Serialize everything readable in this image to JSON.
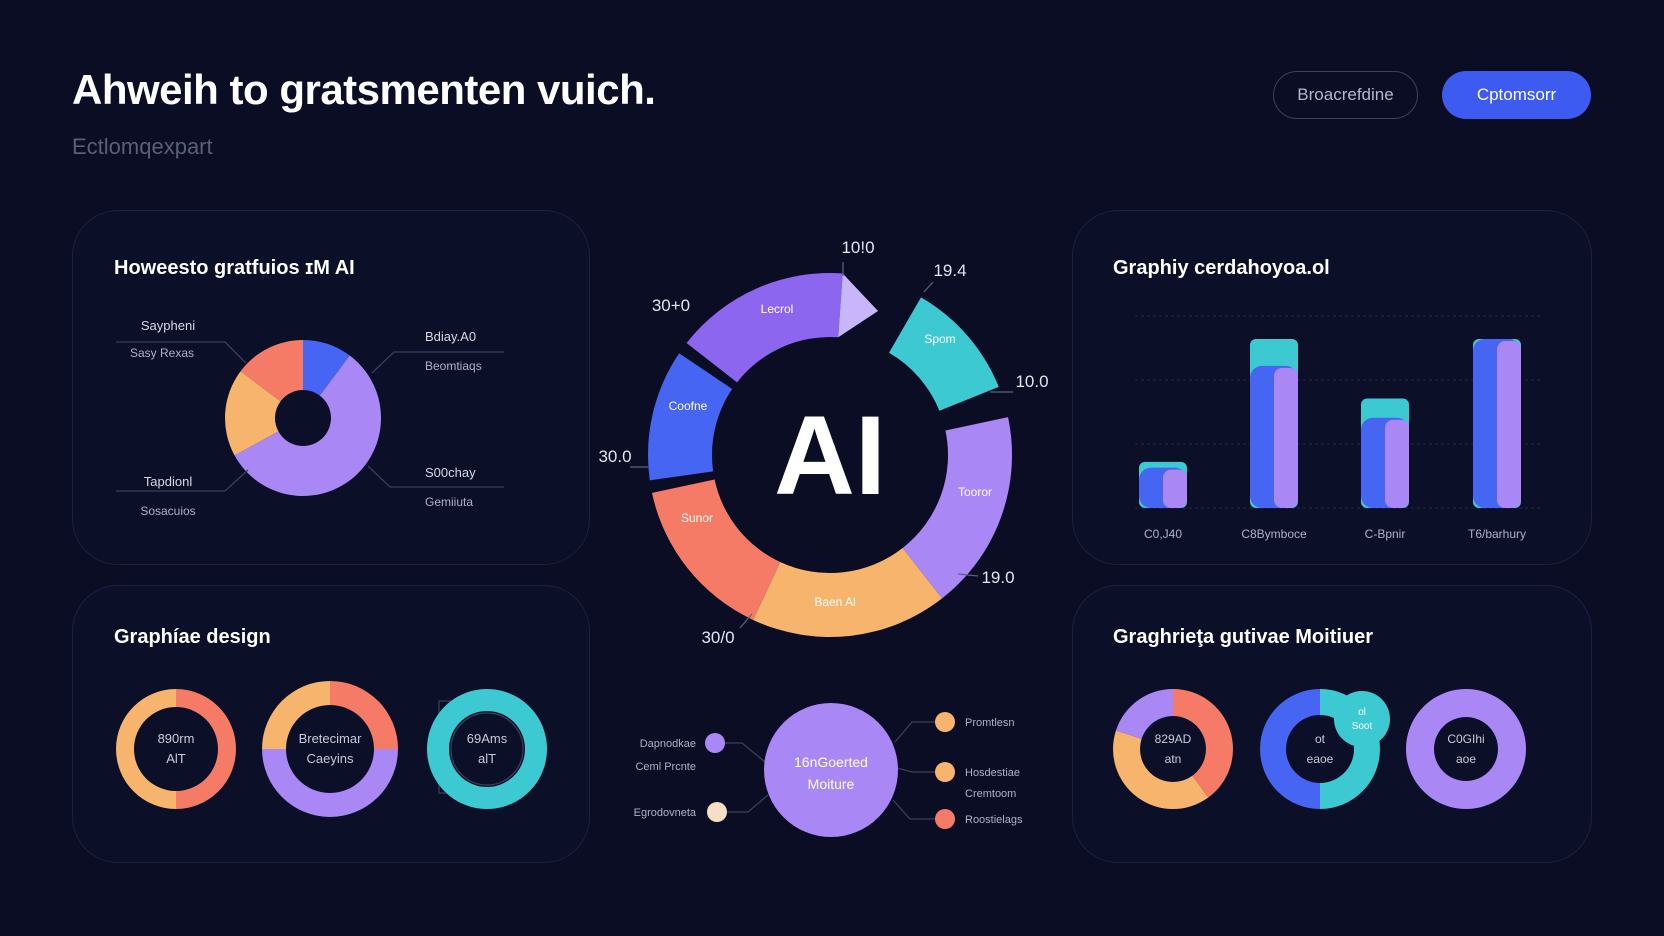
{
  "header": {
    "title": "Ahweih to gratsmenten vuich.",
    "subtitle": "Ectlomqexpart"
  },
  "toolbar": {
    "secondary_label": "Broacrefdine",
    "primary_label": "Cptomsorr"
  },
  "colors": {
    "background": "#0b0d24",
    "card": "#0c0f28",
    "blue": "#4565f2",
    "purple": "#a987f5",
    "violet": "#8d66f0",
    "teal": "#3cc9d2",
    "coral": "#f57b66",
    "orange": "#f6b46c",
    "cream": "#f6dfc4",
    "primary_button": "#3d5bf0"
  },
  "cards": {
    "top_left": "Howeesto gratfuios ɪM AI",
    "top_right": "Graphiy cerdahoyoa.ol",
    "bottom_left": "Graphíae design",
    "bottom_right": "Graghrieţa gutivae Moitiuer"
  },
  "chart_data": [
    {
      "type": "pie",
      "title": "Howeesto gratfuios ɪM AI",
      "slices": [
        {
          "label": "Saypheni",
          "sublabel": "Sasy Rexas",
          "value": 9,
          "color": "#4565f2"
        },
        {
          "label": "Bdiay.A0",
          "sublabel": "Beomtiaqs",
          "value": 50,
          "color": "#a987f5"
        },
        {
          "label": "S00chay",
          "sublabel": "Gemiiuta",
          "value": 16,
          "color": "#f6b46c"
        },
        {
          "label": "Tapdionl",
          "sublabel": "Sosacuios",
          "value": 13,
          "color": "#f57b66"
        }
      ]
    },
    {
      "type": "pie",
      "title": "AI",
      "segments": [
        {
          "label": "Lecrol",
          "color": "#8d66f0"
        },
        {
          "label": "",
          "color": "#c9b6fa"
        },
        {
          "label": "Spom",
          "color": "#3cc9d2"
        },
        {
          "label": "Tooror",
          "color": "#a987f5"
        },
        {
          "label": "Baen Al",
          "color": "#f6b46c"
        },
        {
          "label": "Sunor",
          "color": "#f57b66"
        },
        {
          "label": "Coofne",
          "color": "#4565f2"
        }
      ],
      "annotations": [
        "10!0",
        "19.4",
        "10.0",
        "19.0",
        "30/0",
        "30.0",
        "30+0"
      ]
    },
    {
      "type": "bar",
      "title": "Graphiy cerdahoyoa.ol",
      "categories": [
        "C0,J40",
        "C8Bymboce",
        "C-Bpnir",
        "T6/barhury"
      ],
      "series": [
        {
          "values": [
            21,
            74,
            47,
            88
          ],
          "color": "#4565f2"
        },
        {
          "values": [
            24,
            88,
            57,
            88
          ],
          "color": "#3cc9d2"
        }
      ],
      "ylim": [
        0,
        100
      ],
      "grid": true
    },
    {
      "type": "pie",
      "title": "Graphíae design",
      "donuts": [
        {
          "label_lines": [
            "890rm",
            "AlT"
          ],
          "slices": [
            {
              "value": 50,
              "color": "#f57b66"
            },
            {
              "value": 50,
              "color": "#f6b46c"
            }
          ]
        },
        {
          "label_lines": [
            "Bretecimar",
            "Caeyins"
          ],
          "slices": [
            {
              "value": 25,
              "color": "#f57b66"
            },
            {
              "value": 50,
              "color": "#a987f5"
            },
            {
              "value": 25,
              "color": "#f6b46c"
            }
          ]
        },
        {
          "label_lines": [
            "69Ams",
            "alT"
          ],
          "slices": [
            {
              "value": 50,
              "color": "#3cc9d2"
            }
          ]
        }
      ]
    },
    {
      "type": "pie",
      "title": "16nGoerted Moiture",
      "center_lines": [
        "16nGoerted",
        "Moiture"
      ],
      "left_nodes": [
        {
          "label": "Dapnodkae",
          "sublabel": "Ceml Prcnte",
          "color": "#a987f5"
        },
        {
          "label": "Egrodovneta",
          "sublabel": "",
          "color": "#f6dfc4"
        }
      ],
      "right_nodes": [
        {
          "label": "Promtlesn",
          "sublabel": "",
          "color": "#f6b46c"
        },
        {
          "label": "Hosdestiae",
          "sublabel": "Cremtoom",
          "color": "#f6b46c"
        },
        {
          "label": "Roostielags",
          "sublabel": "",
          "color": "#f57b66"
        }
      ]
    },
    {
      "type": "pie",
      "title": "Graghrieţa gutivae Moitiuer",
      "donuts": [
        {
          "label_lines": [
            "829AD",
            "atn"
          ],
          "slices": [
            {
              "value": 40,
              "color": "#f57b66"
            },
            {
              "value": 40,
              "color": "#f6b46c"
            },
            {
              "value": 20,
              "color": "#a987f5"
            }
          ]
        },
        {
          "label_lines": [
            "ot",
            "eaoe"
          ],
          "badge": [
            "ol",
            "Soot"
          ],
          "slices": [
            {
              "value": 50,
              "color": "#3cc9d2"
            },
            {
              "value": 50,
              "color": "#4565f2"
            }
          ]
        },
        {
          "label_lines": [
            "C0GIhi",
            "aoe"
          ],
          "slices": [
            {
              "value": 100,
              "color": "#a987f5"
            }
          ]
        }
      ]
    }
  ]
}
